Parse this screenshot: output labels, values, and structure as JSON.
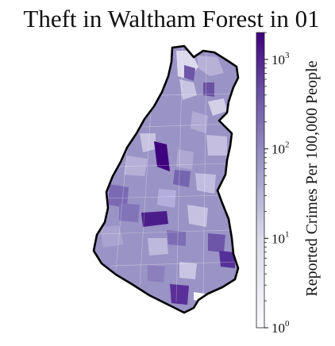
{
  "title": "Theft in Waltham Forest in 01",
  "colorbar": {
    "label": "Reported Crimes Per 100,000 People",
    "scale": "log",
    "range": [
      1,
      2000
    ],
    "ticks": [
      {
        "base": "10",
        "exp": "0",
        "value": 1
      },
      {
        "base": "10",
        "exp": "1",
        "value": 10
      },
      {
        "base": "10",
        "exp": "2",
        "value": 100
      },
      {
        "base": "10",
        "exp": "3",
        "value": 1000
      }
    ],
    "colors": {
      "low": "#fcfbfd",
      "mid": "#9e9ac8",
      "high": "#3f007d"
    }
  },
  "map": {
    "region": "Waltham Forest",
    "fill_base": "#9a93c5",
    "outline": "#000000"
  }
}
